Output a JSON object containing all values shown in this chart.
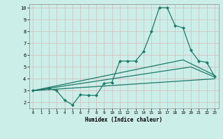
{
  "xlabel": "Humidex (Indice chaleur)",
  "xlim": [
    -0.5,
    23.5
  ],
  "ylim": [
    1.5,
    10.3
  ],
  "yticks": [
    2,
    3,
    4,
    5,
    6,
    7,
    8,
    9,
    10
  ],
  "xticks": [
    0,
    1,
    2,
    3,
    4,
    5,
    6,
    7,
    8,
    9,
    10,
    11,
    12,
    13,
    14,
    15,
    16,
    17,
    18,
    19,
    20,
    21,
    22,
    23
  ],
  "bg_color": "#cceee8",
  "grid_color": "#d8b8b8",
  "line_color": "#1a7a6a",
  "curves": [
    {
      "x": [
        0,
        2,
        3,
        4,
        5,
        6,
        7,
        8,
        9,
        10,
        11,
        12,
        13,
        14,
        15,
        16,
        17,
        18,
        19,
        20,
        21,
        22,
        23
      ],
      "y": [
        3.0,
        3.2,
        3.0,
        2.2,
        1.8,
        2.65,
        2.6,
        2.6,
        3.6,
        3.7,
        5.5,
        5.5,
        5.5,
        6.3,
        8.0,
        10.0,
        10.0,
        8.5,
        8.3,
        6.4,
        5.5,
        5.4,
        4.2
      ],
      "marker": "D",
      "markersize": 2.0,
      "lw": 0.9
    },
    {
      "x": [
        0,
        19,
        23
      ],
      "y": [
        3.0,
        5.6,
        4.3
      ],
      "marker": null,
      "markersize": 0,
      "lw": 0.9
    },
    {
      "x": [
        0,
        20,
        23
      ],
      "y": [
        3.0,
        5.0,
        4.15
      ],
      "marker": null,
      "markersize": 0,
      "lw": 0.9
    },
    {
      "x": [
        0,
        23
      ],
      "y": [
        3.0,
        4.0
      ],
      "marker": null,
      "markersize": 0,
      "lw": 0.9
    }
  ]
}
